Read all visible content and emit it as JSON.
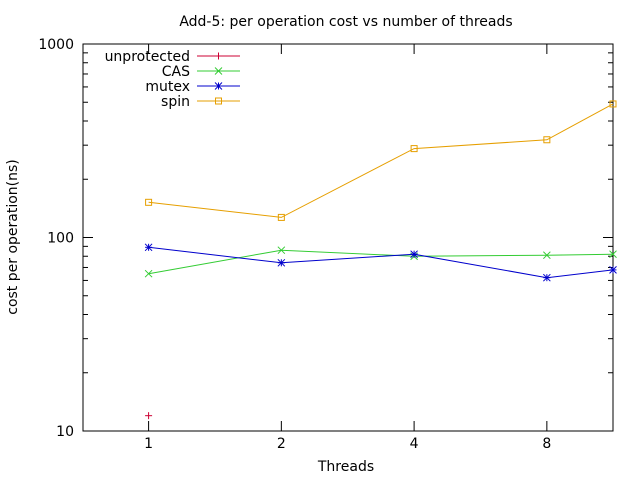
{
  "chart_data": {
    "type": "line",
    "title": "Add-5: per operation cost vs number of threads",
    "xlabel": "Threads",
    "ylabel": "cost per operation(ns)",
    "yscale": "log",
    "xscale": "log2",
    "ylim": [
      10,
      1000
    ],
    "xlim": [
      0.71,
      11.3
    ],
    "x_ticks": [
      1,
      2,
      4,
      8
    ],
    "x_tick_labels": [
      "1",
      "2",
      "4",
      "8"
    ],
    "y_ticks": [
      10,
      100,
      1000
    ],
    "y_tick_labels": [
      "10",
      "100",
      "1000"
    ],
    "grid": false,
    "legend_position": "top-left",
    "series": [
      {
        "name": "unprotected",
        "color": "#cc0033",
        "marker": "plus",
        "points": [
          [
            1,
            12
          ]
        ]
      },
      {
        "name": "CAS",
        "color": "#33cc33",
        "marker": "cross",
        "points": [
          [
            1,
            65
          ],
          [
            2,
            86
          ],
          [
            4,
            80
          ],
          [
            8,
            81
          ],
          [
            11.3,
            82
          ]
        ]
      },
      {
        "name": "mutex",
        "color": "#0000cc",
        "marker": "star",
        "points": [
          [
            1,
            89
          ],
          [
            2,
            74
          ],
          [
            4,
            82
          ],
          [
            8,
            62
          ],
          [
            11.3,
            68
          ]
        ]
      },
      {
        "name": "spin",
        "color": "#e69f00",
        "marker": "square",
        "points": [
          [
            1,
            152
          ],
          [
            2,
            127
          ],
          [
            4,
            288
          ],
          [
            8,
            320
          ],
          [
            11.3,
            490
          ]
        ]
      }
    ]
  }
}
